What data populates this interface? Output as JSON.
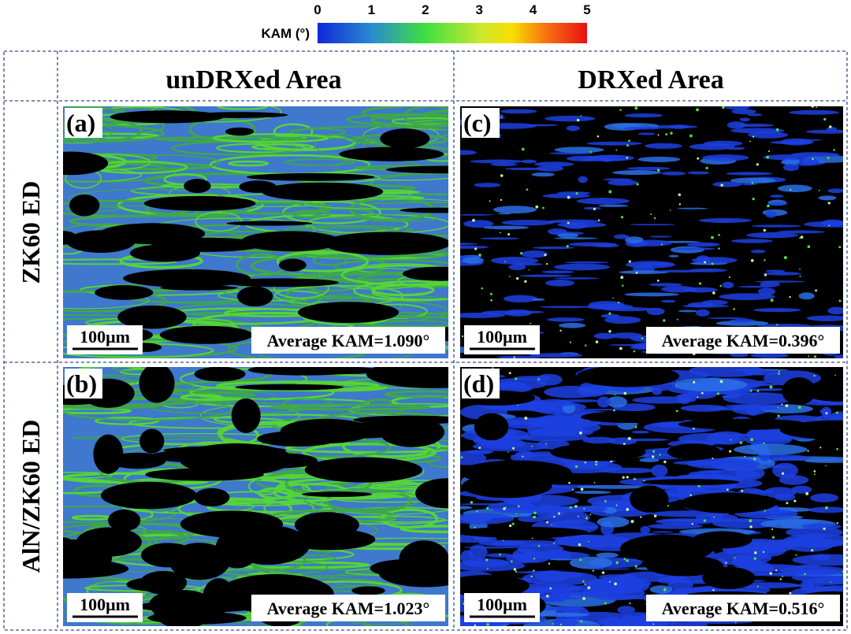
{
  "colorbar": {
    "label": "KAM (°)",
    "ticks": [
      0,
      1,
      2,
      3,
      4,
      5
    ]
  },
  "columns": [
    "unDRXed Area",
    "DRXed Area"
  ],
  "rows": [
    "ZK60 ED",
    "AlN/ZK60 ED"
  ],
  "panels": [
    {
      "label": "(a)",
      "scale_bar": "100μm",
      "average": "Average KAM=1.090°"
    },
    {
      "label": "(c)",
      "scale_bar": "100μm",
      "average": "Average KAM=0.396°"
    },
    {
      "label": "(b)",
      "scale_bar": "100μm",
      "average": "Average KAM=1.023°"
    },
    {
      "label": "(d)",
      "scale_bar": "100μm",
      "average": "Average KAM=0.516°"
    }
  ]
}
